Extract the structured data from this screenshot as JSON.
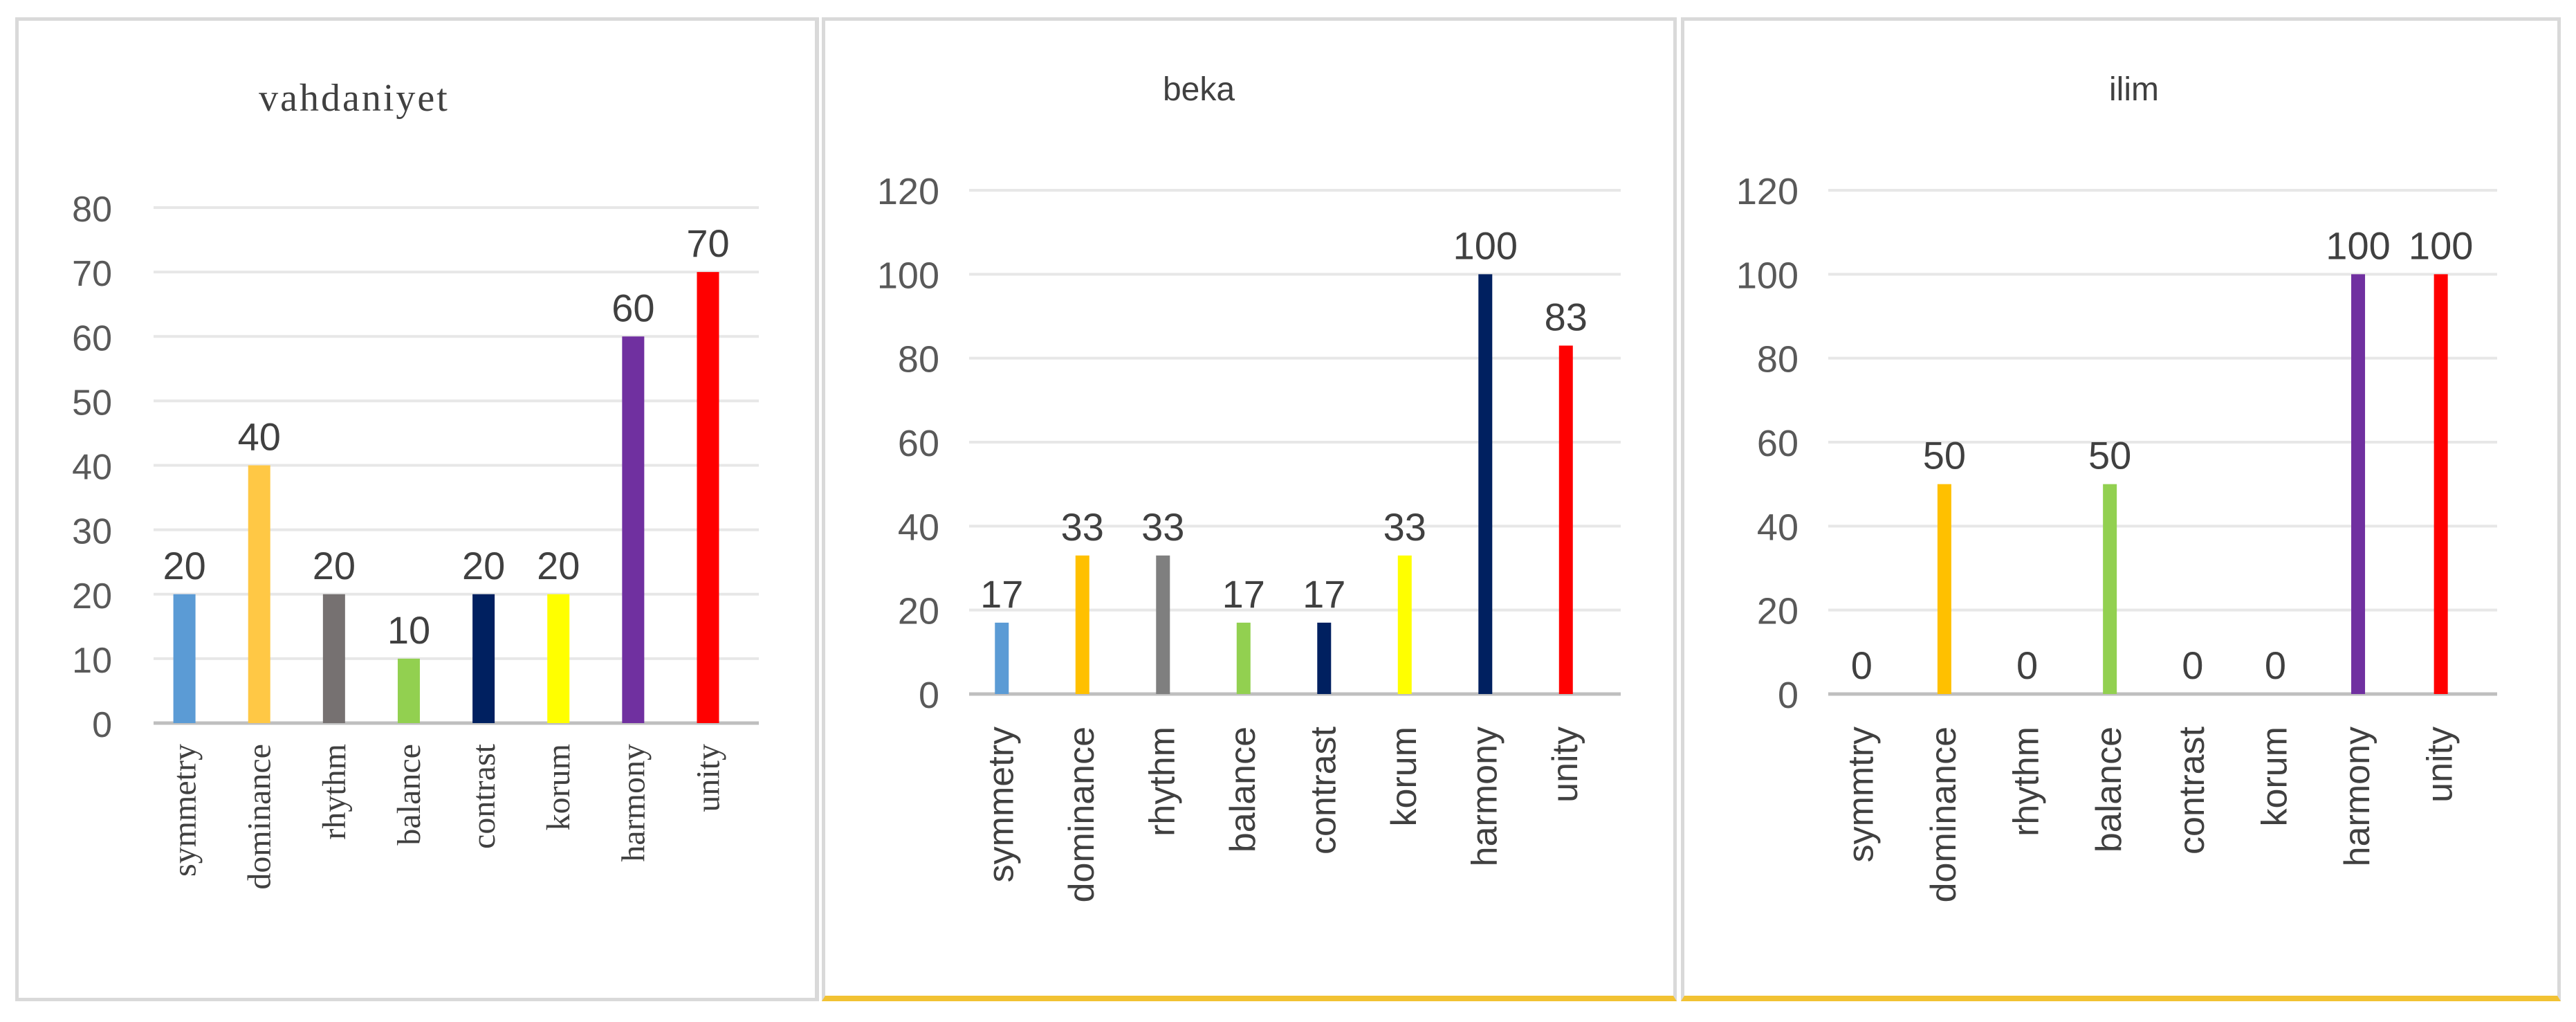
{
  "chart_data": [
    {
      "type": "bar",
      "title": "vahdaniyet",
      "categories": [
        "symmetry",
        "dominance",
        "rhythm",
        "balance",
        "contrast",
        "korum",
        "harmony",
        "unity"
      ],
      "values": [
        20,
        40,
        20,
        10,
        20,
        20,
        60,
        70
      ],
      "colors": [
        "#5b9bd5",
        "#ffc845",
        "#767171",
        "#92d050",
        "#002060",
        "#ffff00",
        "#7030a0",
        "#ff0000"
      ],
      "ylim": [
        0,
        80
      ],
      "yticks": [
        0,
        10,
        20,
        30,
        40,
        50,
        60,
        70,
        80
      ],
      "grid": true,
      "legend": "none"
    },
    {
      "type": "bar",
      "title": "beka",
      "categories": [
        "symmetry",
        "dominance",
        "rhythm",
        "balance",
        "contrast",
        "korum",
        "harmony",
        "unity"
      ],
      "values": [
        17,
        33,
        33,
        17,
        17,
        33,
        100,
        83
      ],
      "colors": [
        "#5b9bd5",
        "#ffc000",
        "#7f7f7f",
        "#92d050",
        "#002060",
        "#ffff00",
        "#002060",
        "#ff0000"
      ],
      "ylim": [
        0,
        120
      ],
      "yticks": [
        0,
        20,
        40,
        60,
        80,
        100,
        120
      ],
      "grid": true,
      "legend": "none"
    },
    {
      "type": "bar",
      "title": "ilim",
      "categories": [
        "symmtry",
        "dominance",
        "rhythm",
        "balance",
        "contrast",
        "korum",
        "harmony",
        "unity"
      ],
      "values": [
        0,
        50,
        0,
        50,
        0,
        0,
        100,
        100
      ],
      "colors": [
        "#5b9bd5",
        "#ffc000",
        "#7f7f7f",
        "#92d050",
        "#002060",
        "#ffff00",
        "#7030a0",
        "#ff0000"
      ],
      "ylim": [
        0,
        120
      ],
      "yticks": [
        0,
        20,
        40,
        60,
        80,
        100,
        120
      ],
      "grid": true,
      "legend": "none"
    }
  ]
}
